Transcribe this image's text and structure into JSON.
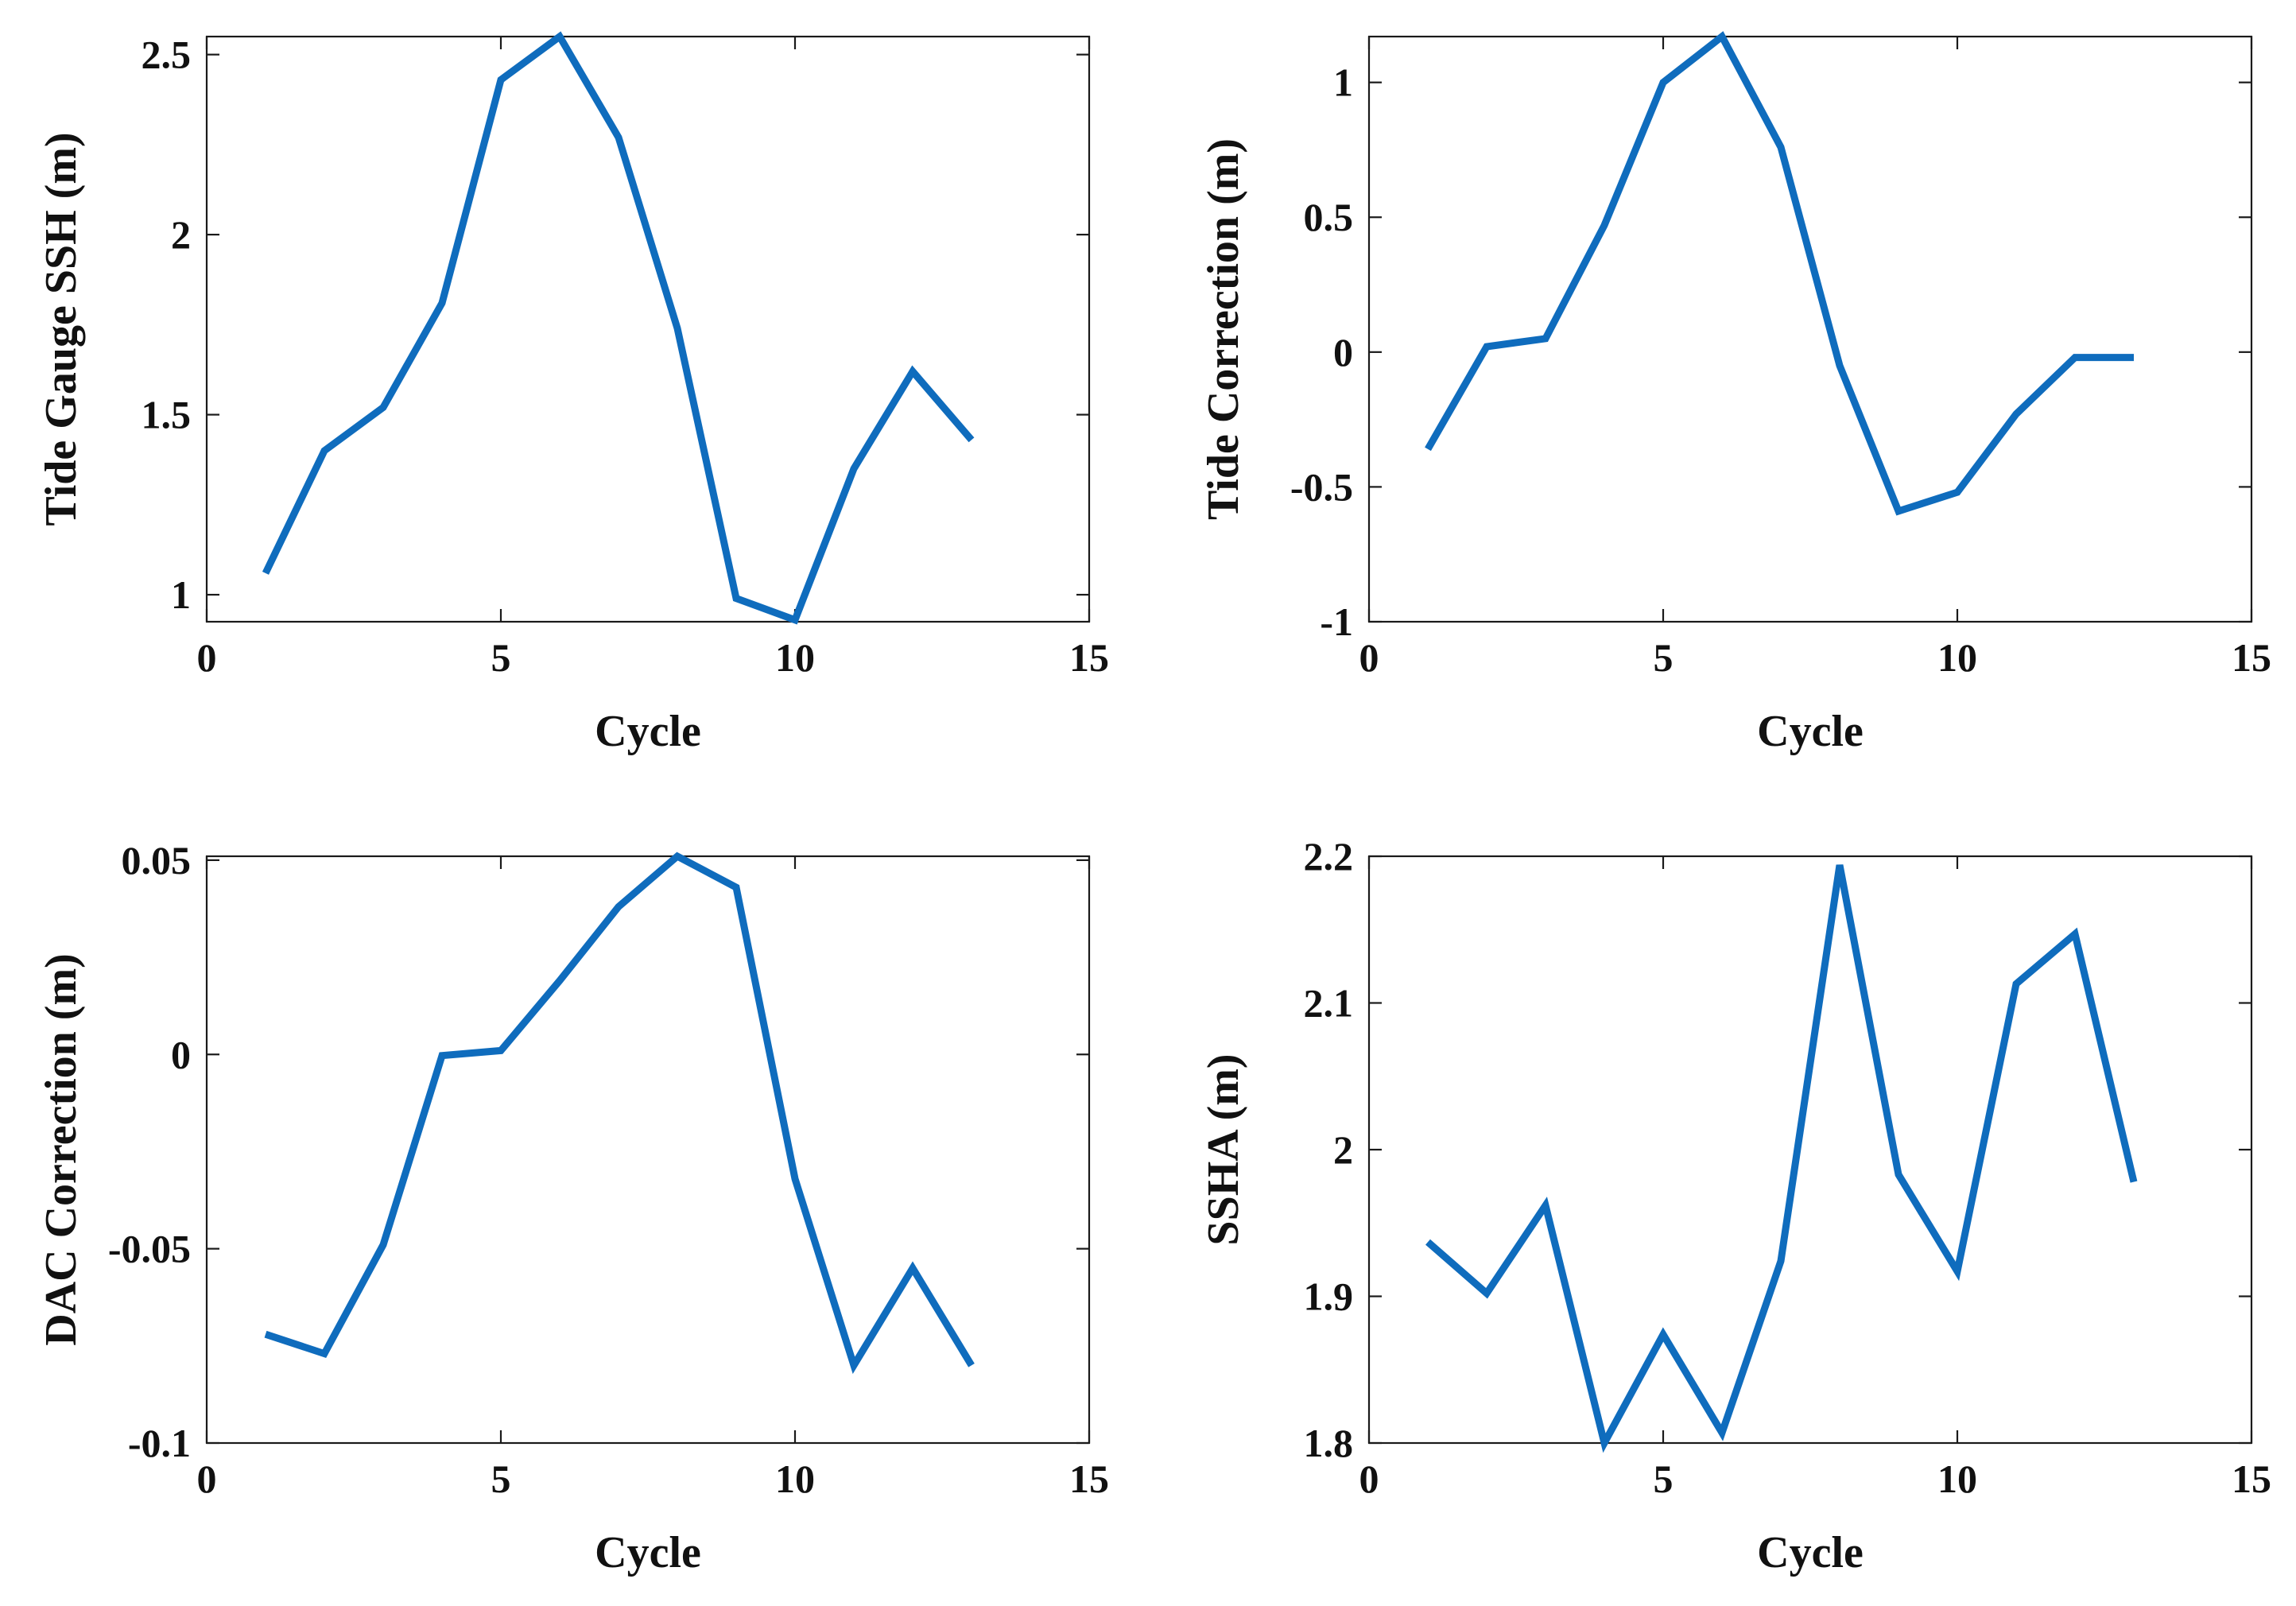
{
  "figure": {
    "line_color": "#0f6cbd",
    "axis_color": "#1a1a1a"
  },
  "chart_data": [
    {
      "type": "line",
      "title": "",
      "xlabel": "Cycle",
      "ylabel": "Tide Gauge SSH (m)",
      "xlim": [
        0,
        15
      ],
      "ylim": [
        0.925,
        2.55
      ],
      "xticks": [
        0,
        5,
        10,
        15
      ],
      "xtick_labels": [
        "0",
        "5",
        "10",
        "15"
      ],
      "yticks": [
        1,
        1.5,
        2,
        2.5
      ],
      "ytick_labels": [
        "1",
        "1.5",
        "2",
        "2.5"
      ],
      "grid": false,
      "series": [
        {
          "x": [
            1,
            2,
            3,
            4,
            5,
            6,
            7,
            8,
            9,
            10,
            11,
            12,
            13
          ],
          "values": [
            1.06,
            1.4,
            1.52,
            1.81,
            2.43,
            2.55,
            2.27,
            1.74,
            0.99,
            0.93,
            1.35,
            1.62,
            1.43
          ]
        }
      ]
    },
    {
      "type": "line",
      "title": "",
      "xlabel": "Cycle",
      "ylabel": "Tide Correction  (m)",
      "xlim": [
        0,
        15
      ],
      "ylim": [
        -1,
        1.17
      ],
      "xticks": [
        0,
        5,
        10,
        15
      ],
      "xtick_labels": [
        "0",
        "5",
        "10",
        "15"
      ],
      "yticks": [
        -1,
        -0.5,
        0,
        0.5,
        1
      ],
      "ytick_labels": [
        "-1",
        "-0.5",
        "0",
        "0.5",
        "1"
      ],
      "grid": false,
      "series": [
        {
          "x": [
            1,
            2,
            3,
            4,
            5,
            6,
            7,
            8,
            9,
            10,
            11,
            12,
            13
          ],
          "values": [
            -0.36,
            0.02,
            0.05,
            0.47,
            1.0,
            1.17,
            0.76,
            -0.05,
            -0.59,
            -0.52,
            -0.23,
            -0.02,
            -0.02
          ]
        }
      ]
    },
    {
      "type": "line",
      "title": "",
      "xlabel": "Cycle",
      "ylabel": "DAC Correction  (m)",
      "xlim": [
        0,
        15
      ],
      "ylim": [
        -0.1,
        0.051
      ],
      "xticks": [
        0,
        5,
        10,
        15
      ],
      "xtick_labels": [
        "0",
        "5",
        "10",
        "15"
      ],
      "yticks": [
        -0.1,
        -0.05,
        0,
        0.05
      ],
      "ytick_labels": [
        "-0.1",
        "-0.05",
        "0",
        "0.05"
      ],
      "grid": false,
      "series": [
        {
          "x": [
            1,
            2,
            3,
            4,
            5,
            6,
            7,
            8,
            9,
            10,
            11,
            12,
            13
          ],
          "values": [
            -0.072,
            -0.077,
            -0.049,
            -0.0003,
            0.001,
            0.019,
            0.038,
            0.051,
            0.043,
            -0.032,
            -0.08,
            -0.055,
            -0.08
          ]
        }
      ]
    },
    {
      "type": "line",
      "title": "",
      "xlabel": "Cycle",
      "ylabel": "SSHA  (m)",
      "xlim": [
        0,
        15
      ],
      "ylim": [
        1.8,
        2.2
      ],
      "xticks": [
        0,
        5,
        10,
        15
      ],
      "xtick_labels": [
        "0",
        "5",
        "10",
        "15"
      ],
      "yticks": [
        1.8,
        1.9,
        2,
        2.1,
        2.2
      ],
      "ytick_labels": [
        "1.8",
        "1.9",
        "2",
        "2.1",
        "2.2"
      ],
      "grid": false,
      "series": [
        {
          "x": [
            1,
            2,
            3,
            4,
            5,
            6,
            7,
            8,
            9,
            10,
            11,
            12,
            13
          ],
          "values": [
            1.937,
            1.902,
            1.962,
            1.8,
            1.874,
            1.807,
            1.924,
            2.194,
            1.983,
            1.917,
            2.113,
            2.147,
            1.978
          ]
        }
      ]
    }
  ]
}
